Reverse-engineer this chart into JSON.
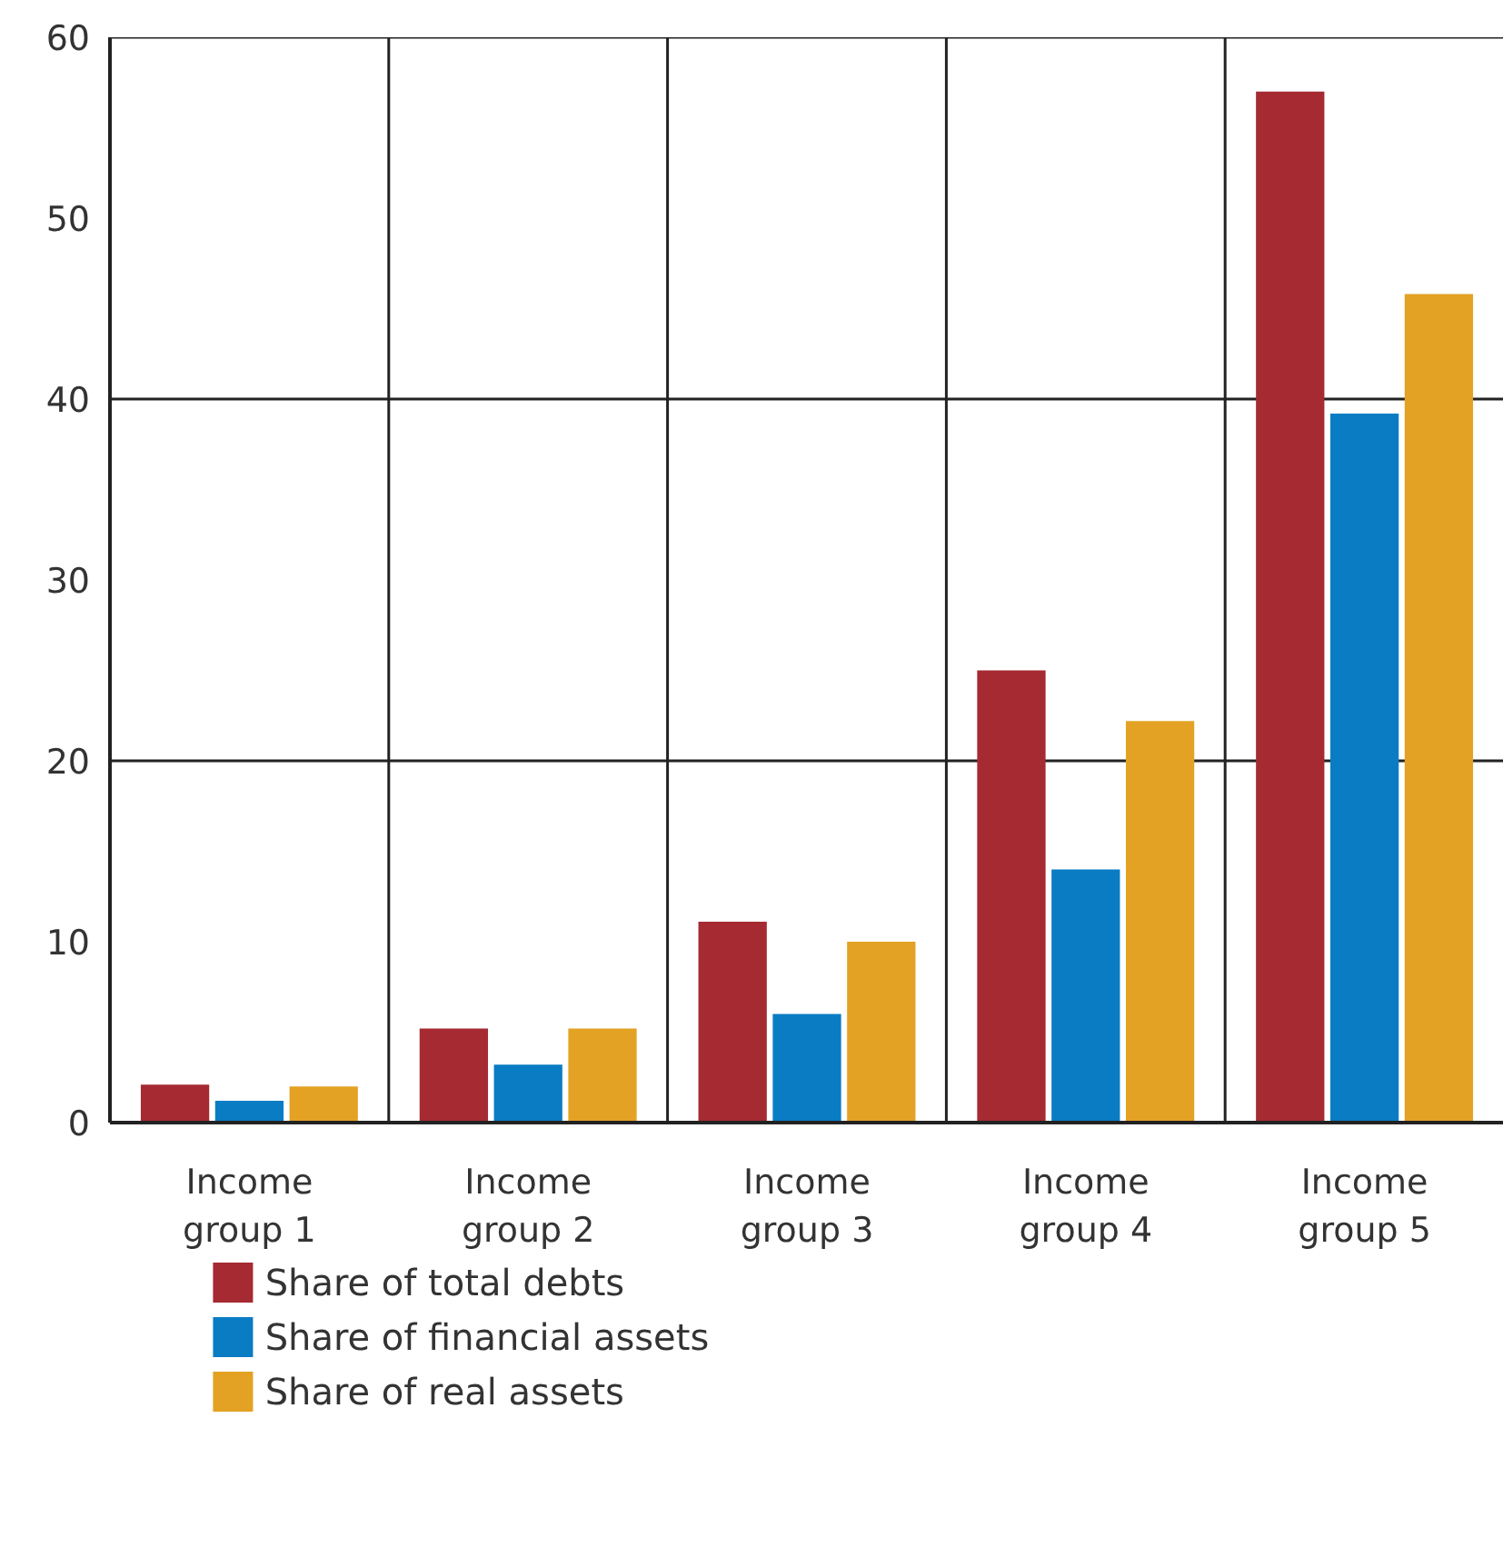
{
  "chart_data": {
    "type": "bar",
    "categories": [
      "Income group 1",
      "Income group 2",
      "Income group 3",
      "Income group 4",
      "Income group 5"
    ],
    "series": [
      {
        "name": "Share of total debts",
        "color": "#a52a32",
        "values": [
          2.1,
          5.2,
          11.1,
          25,
          57
        ]
      },
      {
        "name": "Share of financial assets",
        "color": "#0a7cc4",
        "values": [
          1.2,
          3.2,
          6,
          14,
          39.2
        ]
      },
      {
        "name": "Share of real assets",
        "color": "#e3a224",
        "values": [
          2,
          5.2,
          10,
          22.2,
          45.8
        ]
      }
    ],
    "ylim": [
      0,
      60
    ],
    "yticks": [
      0,
      10,
      20,
      30,
      40,
      50,
      60
    ],
    "grid": true,
    "legend": "bottom left"
  }
}
